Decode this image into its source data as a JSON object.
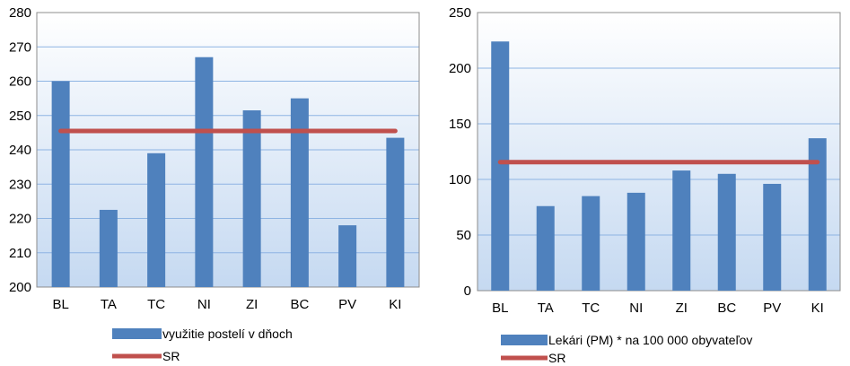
{
  "chart_data": [
    {
      "type": "bar",
      "title": "",
      "xlabel": "",
      "ylabel": "",
      "categories": [
        "BL",
        "TA",
        "TC",
        "NI",
        "ZI",
        "BC",
        "PV",
        "KI"
      ],
      "ylim": [
        200,
        280
      ],
      "yticks": [
        200,
        210,
        220,
        230,
        240,
        250,
        260,
        270,
        280
      ],
      "grid": true,
      "legend_position": "bottom",
      "series": [
        {
          "name": "využitie postelí v dňoch",
          "kind": "bar",
          "color": "#4f81bd",
          "values": [
            260,
            222.5,
            239,
            267,
            251.5,
            255,
            218,
            243.5
          ]
        },
        {
          "name": "SR",
          "kind": "line",
          "color": "#c0504d",
          "values": [
            245.5,
            245.5,
            245.5,
            245.5,
            245.5,
            245.5,
            245.5,
            245.5
          ]
        }
      ]
    },
    {
      "type": "bar",
      "title": "",
      "xlabel": "",
      "ylabel": "",
      "categories": [
        "BL",
        "TA",
        "TC",
        "NI",
        "ZI",
        "BC",
        "PV",
        "KI"
      ],
      "ylim": [
        0,
        250
      ],
      "yticks": [
        0,
        50,
        100,
        150,
        200,
        250
      ],
      "grid": true,
      "legend_position": "bottom",
      "series": [
        {
          "name": "Lekári (PM) * na 100 000 obyvateľov",
          "kind": "bar",
          "color": "#4f81bd",
          "values": [
            224,
            76,
            85,
            88,
            108,
            105,
            96,
            137
          ]
        },
        {
          "name": "SR",
          "kind": "line",
          "color": "#c0504d",
          "values": [
            115.5,
            115.5,
            115.5,
            115.5,
            115.5,
            115.5,
            115.5,
            115.5
          ]
        }
      ]
    }
  ]
}
